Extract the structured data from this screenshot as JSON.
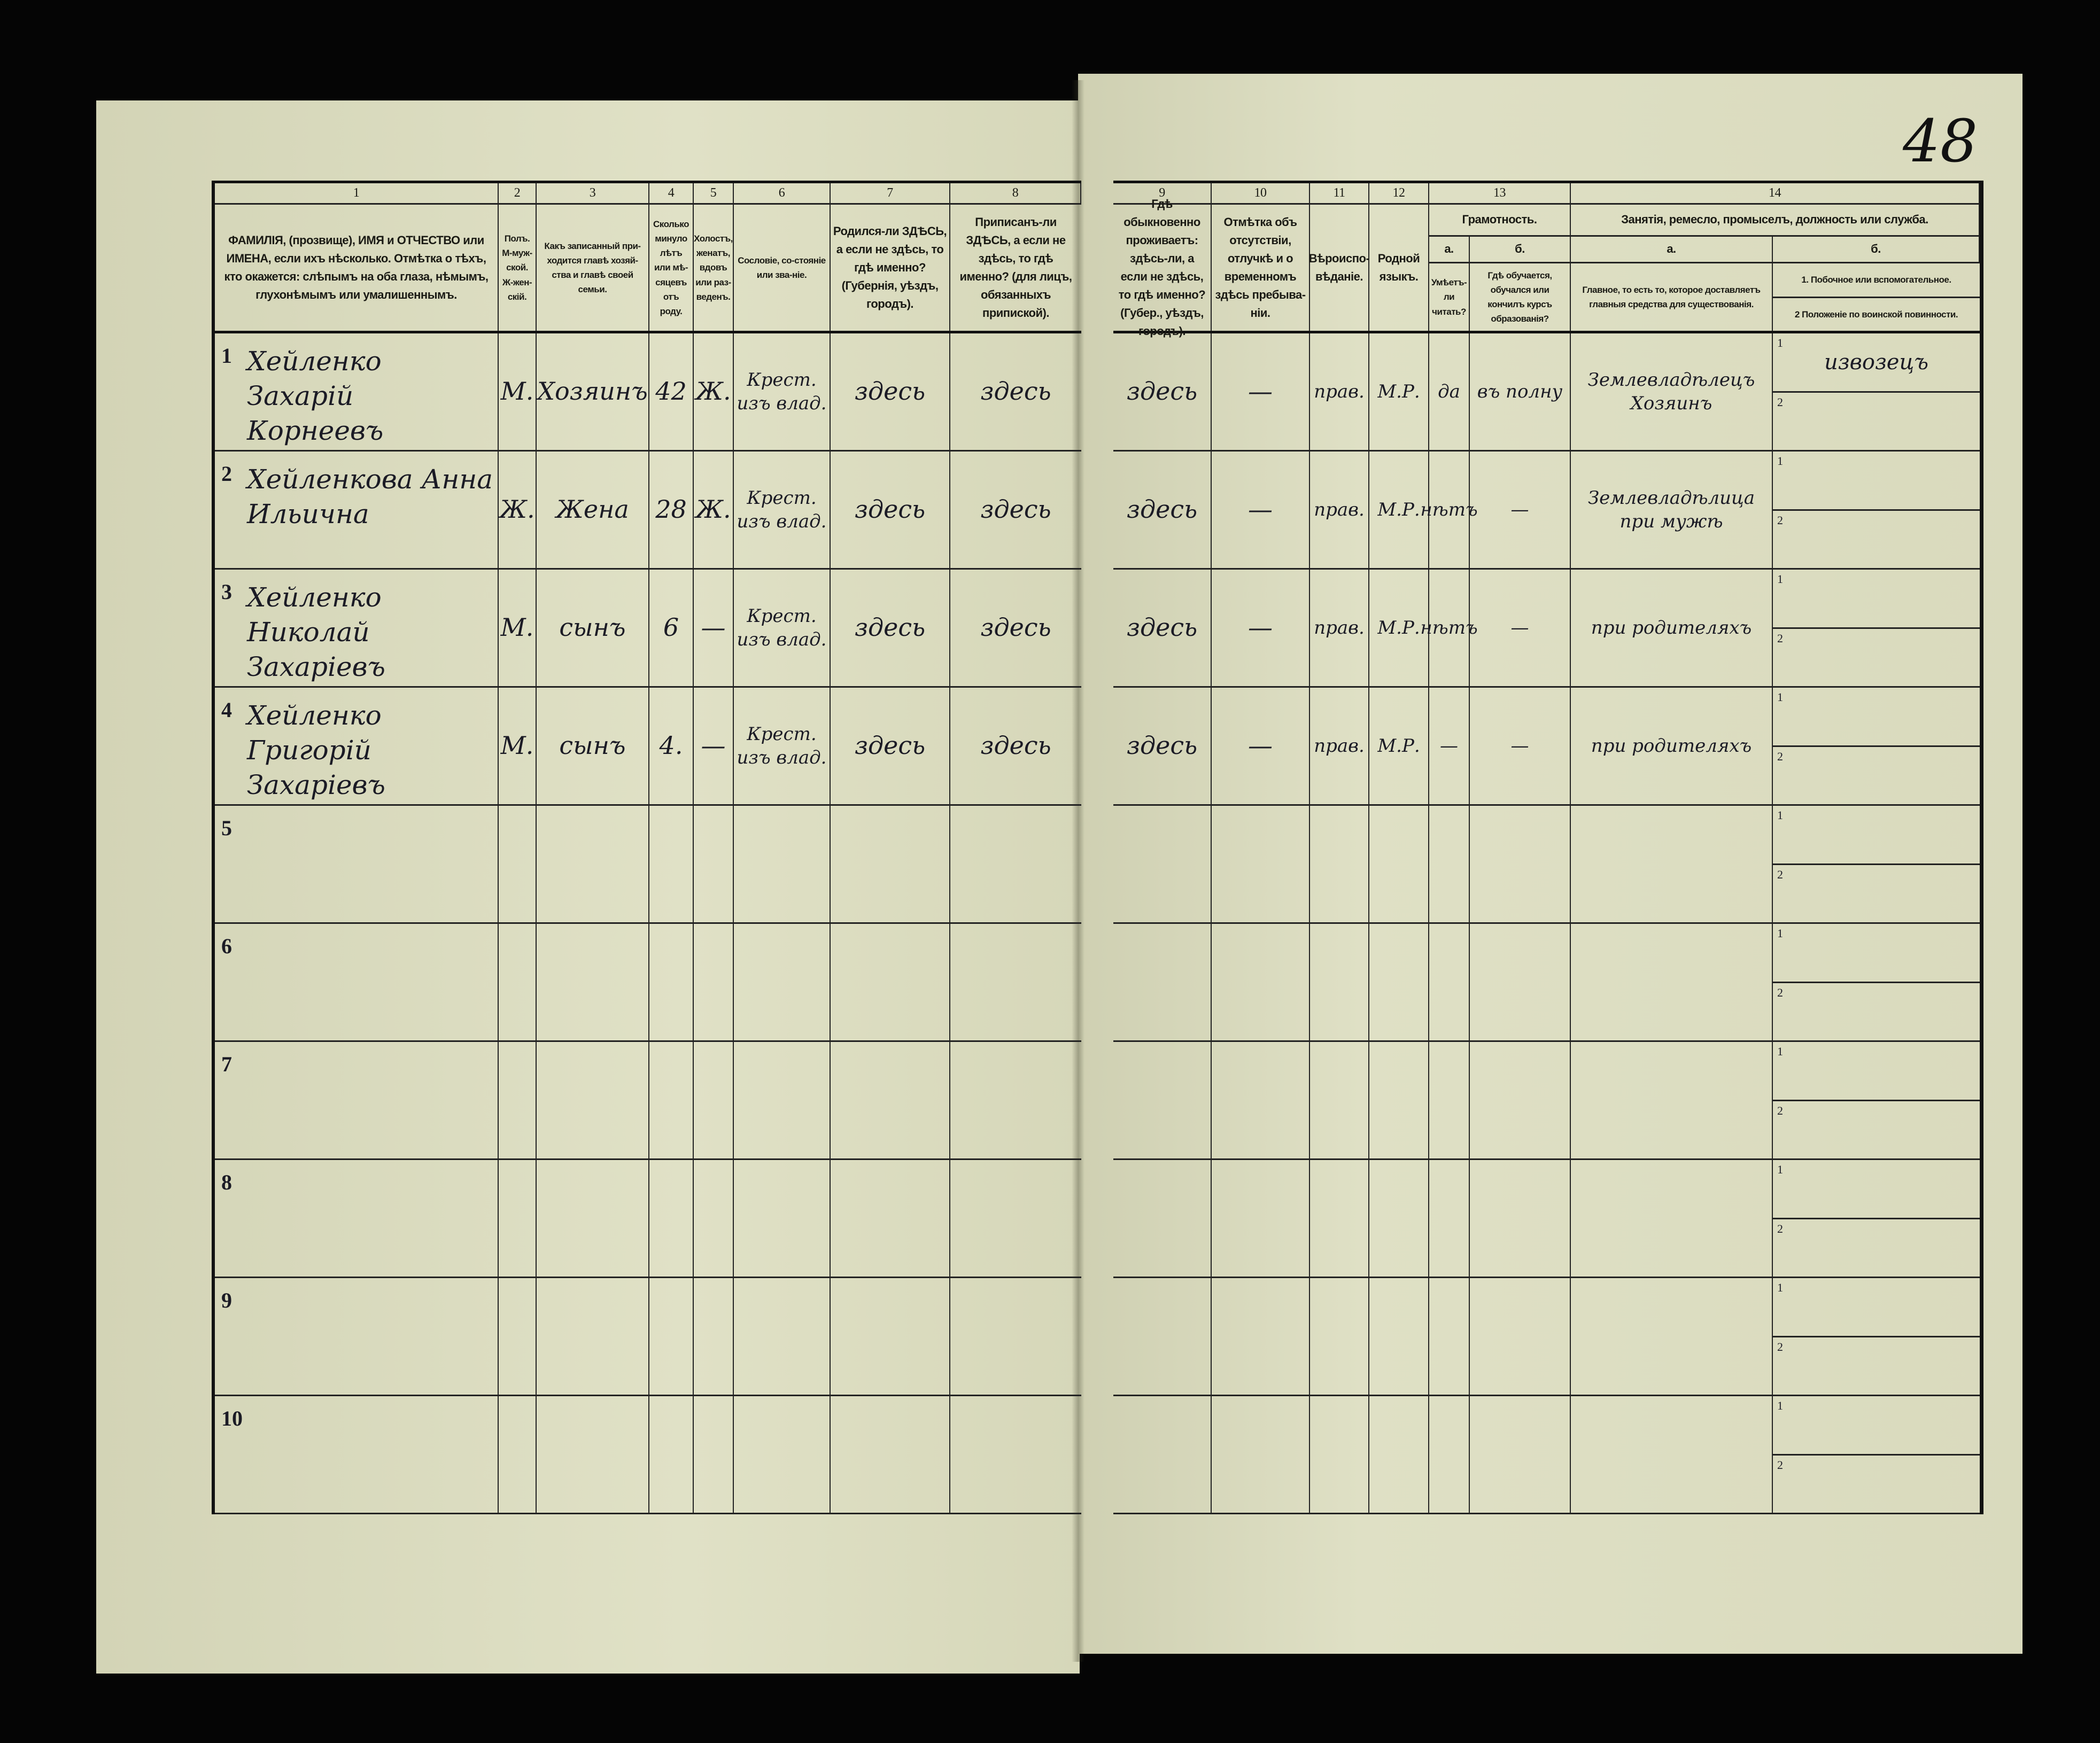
{
  "sheet_number": "48",
  "left_headers": [
    {
      "num": "1",
      "text": "ФАМИЛІЯ, (прозвище), ИМЯ и ОТЧЕСТВО или ИМЕНА, если ихъ нѣсколько. Отмѣтка о тѣхъ, кто окажется: слѣпымъ на оба глаза, нѣмымъ, глухонѣмымъ или умалишеннымъ."
    },
    {
      "num": "2",
      "text": "Полъ. М-муж-ской. Ж-жен-скій."
    },
    {
      "num": "3",
      "text": "Какъ записанный при-ходится главѣ хозяй-ства и главѣ своей семьи."
    },
    {
      "num": "4",
      "text": "Сколько минуло лѣтъ или мѣ-сяцевъ отъ роду."
    },
    {
      "num": "5",
      "text": "Холостъ, женатъ, вдовъ или раз-веденъ."
    },
    {
      "num": "6",
      "text": "Сословіе, со-стояніе или зва-ніе."
    },
    {
      "num": "7",
      "text": "Родился-ли ЗДѢСЬ, а если не здѣсь, то гдѣ именно? (Губернія, уѣздъ, городъ)."
    },
    {
      "num": "8",
      "text": "Приписанъ-ли ЗДѢСЬ, а если не здѣсь, то гдѣ именно? (для лицъ, обязанныхъ припиской)."
    }
  ],
  "right_headers": {
    "col9": {
      "num": "9",
      "text": "Гдѣ обыкновенно проживаетъ: здѣсь-ли, а если не здѣсь, то гдѣ именно? (Губер., уѣздъ, городъ)."
    },
    "col10": {
      "num": "10",
      "text": "Отмѣтка объ отсутствіи, отлучкѣ и о временномъ здѣсь пребыва-ніи."
    },
    "col11": {
      "num": "11",
      "text": "Вѣроиспо-вѣданіе."
    },
    "col12": {
      "num": "12",
      "text": "Родной языкъ."
    },
    "col13": {
      "num": "13",
      "title": "Грамотность.",
      "a_label": "а.",
      "a_text": "Умѣетъ-ли читать?",
      "b_label": "б.",
      "b_text": "Гдѣ обучается, обучался или кончилъ курсъ образованія?"
    },
    "col14": {
      "num": "14",
      "title": "Занятія, ремесло, промыселъ, должность или служба.",
      "a_label": "а.",
      "a_text": "Главное, то есть то, которое доставляетъ главныя средства для существованія.",
      "b_label": "б.",
      "b_text1": "1. Побочное или вспомогательное.",
      "b_text2": "2 Положеніе по воинской повинности."
    }
  },
  "sub_row_labels": [
    "1",
    "2"
  ],
  "rows": [
    {
      "n": "1",
      "name": "Хейленко Захарій Корнеевъ",
      "sex": "М.",
      "relation": "Хозяинъ",
      "age": "42",
      "marital": "Ж.",
      "estate": "Крест. изъ влад.",
      "born": "здесь",
      "registered": "здесь",
      "residence": "здесь",
      "absence": "—",
      "religion": "прав.",
      "language": "М.Р.",
      "literate": "да",
      "education": "въ полну",
      "occupation": "Землевладѣлецъ Хозяинъ",
      "secondary": "извозецъ",
      "military": ""
    },
    {
      "n": "2",
      "name": "Хейленкова Анна Ильична",
      "sex": "Ж.",
      "relation": "Жена",
      "age": "28",
      "marital": "Ж.",
      "estate": "Крест. изъ влад.",
      "born": "здесь",
      "registered": "здесь",
      "residence": "здесь",
      "absence": "—",
      "religion": "прав.",
      "language": "М.Р.",
      "literate": "нѣтъ",
      "education": "—",
      "occupation": "Землевладѣлица при мужѣ",
      "secondary": "",
      "military": ""
    },
    {
      "n": "3",
      "name": "Хейленко Николай Захаріевъ",
      "sex": "М.",
      "relation": "сынъ",
      "age": "6",
      "marital": "—",
      "estate": "Крест. изъ влад.",
      "born": "здесь",
      "registered": "здесь",
      "residence": "здесь",
      "absence": "—",
      "religion": "прав.",
      "language": "М.Р.",
      "literate": "нѣтъ",
      "education": "—",
      "occupation": "при родителяхъ",
      "secondary": "",
      "military": ""
    },
    {
      "n": "4",
      "name": "Хейленко Григорій Захаріевъ",
      "sex": "М.",
      "relation": "сынъ",
      "age": "4.",
      "marital": "—",
      "estate": "Крест. изъ влад.",
      "born": "здесь",
      "registered": "здесь",
      "residence": "здесь",
      "absence": "—",
      "religion": "прав.",
      "language": "М.Р.",
      "literate": "—",
      "education": "—",
      "occupation": "при родителяхъ",
      "secondary": "",
      "military": ""
    },
    {
      "n": "5"
    },
    {
      "n": "6"
    },
    {
      "n": "7"
    },
    {
      "n": "8"
    },
    {
      "n": "9"
    },
    {
      "n": "10"
    }
  ]
}
